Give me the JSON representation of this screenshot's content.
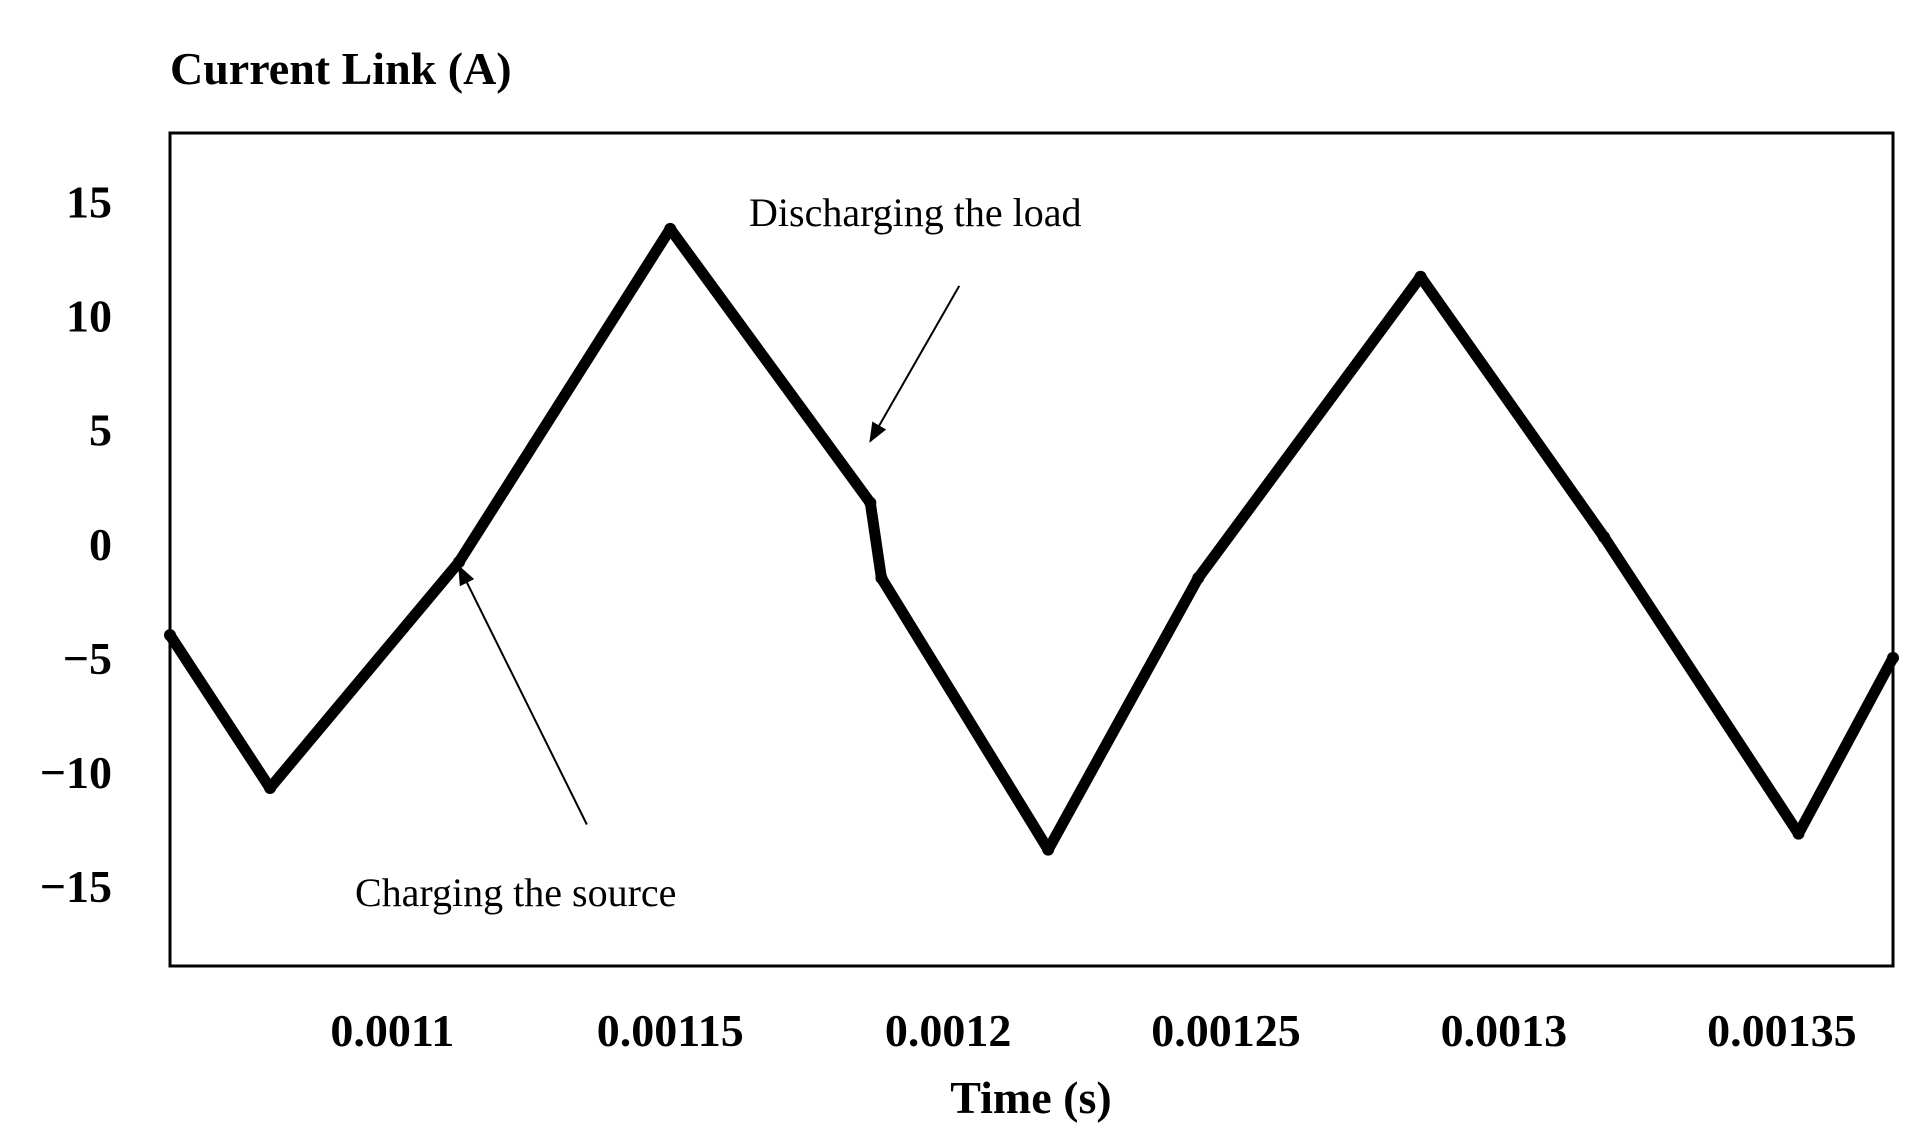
{
  "chart_data": {
    "type": "line",
    "title": "Current Link (A)",
    "xlabel": "Time (s)",
    "ylabel": "",
    "xlim": [
      0.00106,
      0.00137
    ],
    "ylim": [
      -18.5,
      18
    ],
    "xticks": [
      0.0011,
      0.00115,
      0.0012,
      0.00125,
      0.0013,
      0.00135
    ],
    "xtick_labels": [
      "0.0011",
      "0.00115",
      "0.0012",
      "0.00125",
      "0.0013",
      "0.00135"
    ],
    "yticks": [
      15,
      10,
      5,
      0,
      -5,
      -10,
      -15
    ],
    "ytick_labels": [
      "15",
      "10",
      "5",
      "0",
      "−5",
      "−10",
      "−15"
    ],
    "grid": false,
    "line_color": "#000000",
    "series": [
      {
        "x": [
          0.00106,
          0.001078,
          0.001112,
          0.00115,
          0.001186,
          0.001188,
          0.001218,
          0.001245,
          0.001285,
          0.001318,
          0.001353,
          0.00137
        ],
        "y": [
          -4,
          -10.7,
          -0.8,
          13.8,
          1.8,
          -1.5,
          -13.4,
          -1.5,
          11.7,
          0.3,
          -12.7,
          -5
        ]
      }
    ],
    "annotations": [
      {
        "text": "Discharging the load",
        "arrow_from": [
          0.001202,
          11.3
        ],
        "arrow_to": [
          0.001186,
          4.5
        ]
      },
      {
        "text": "Charging the source",
        "arrow_from": [
          0.001135,
          -12.3
        ],
        "arrow_to": [
          0.001112,
          -1.0
        ]
      }
    ]
  }
}
